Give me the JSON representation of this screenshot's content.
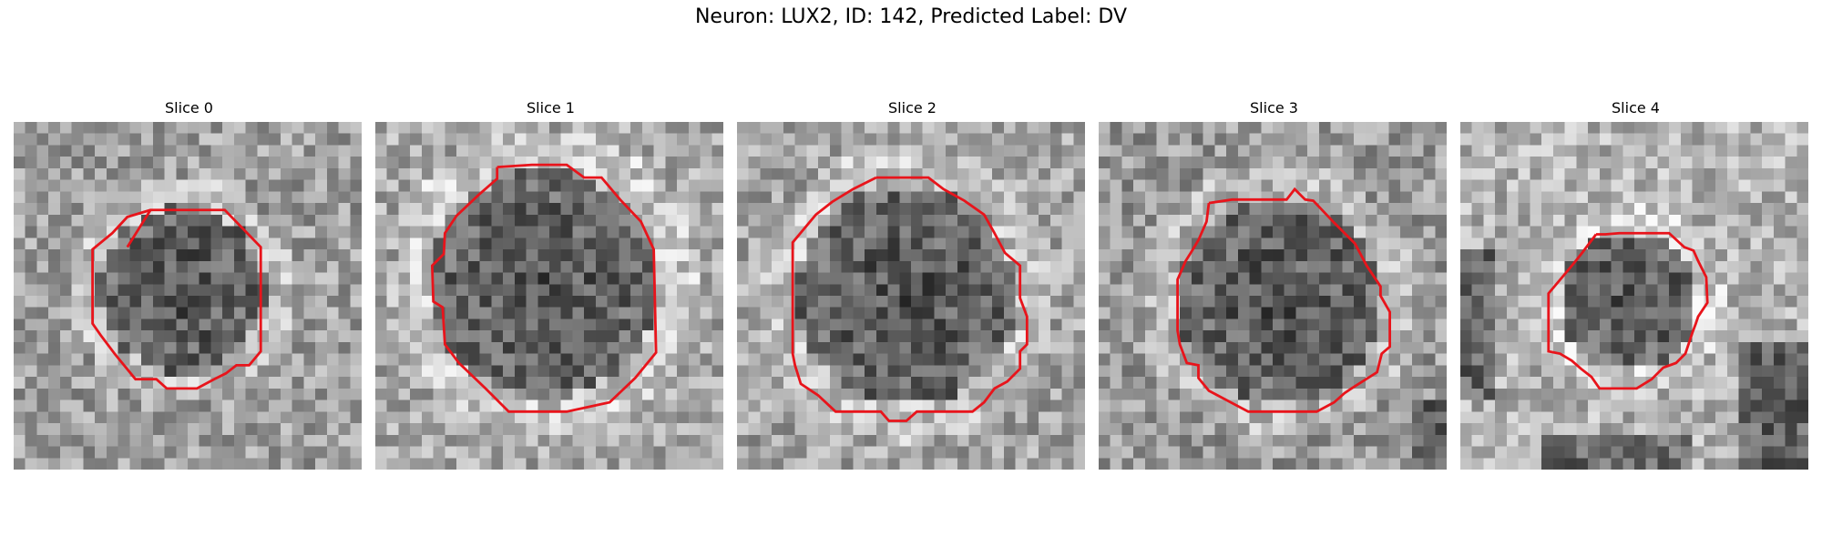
{
  "figure": {
    "title": "Neuron: LUX2, ID: 142, Predicted Label: DV"
  },
  "panels": [
    {
      "title": "Slice 0",
      "brightness": 0.62,
      "contour_shape": "small_octagon",
      "shade": "blob_dark_center"
    },
    {
      "title": "Slice 1",
      "brightness": 0.66,
      "contour_shape": "large_octagon",
      "shade": "large_dark_disk"
    },
    {
      "title": "Slice 2",
      "brightness": 0.64,
      "contour_shape": "large_octagon",
      "shade": "mid_dark_disk"
    },
    {
      "title": "Slice 3",
      "brightness": 0.6,
      "contour_shape": "large_octagon",
      "shade": "mid_dark_disk"
    },
    {
      "title": "Slice 4",
      "brightness": 0.7,
      "contour_shape": "small_octagon",
      "shade": "small_dark_disk"
    }
  ],
  "colors": {
    "contour": "#e8141b"
  }
}
